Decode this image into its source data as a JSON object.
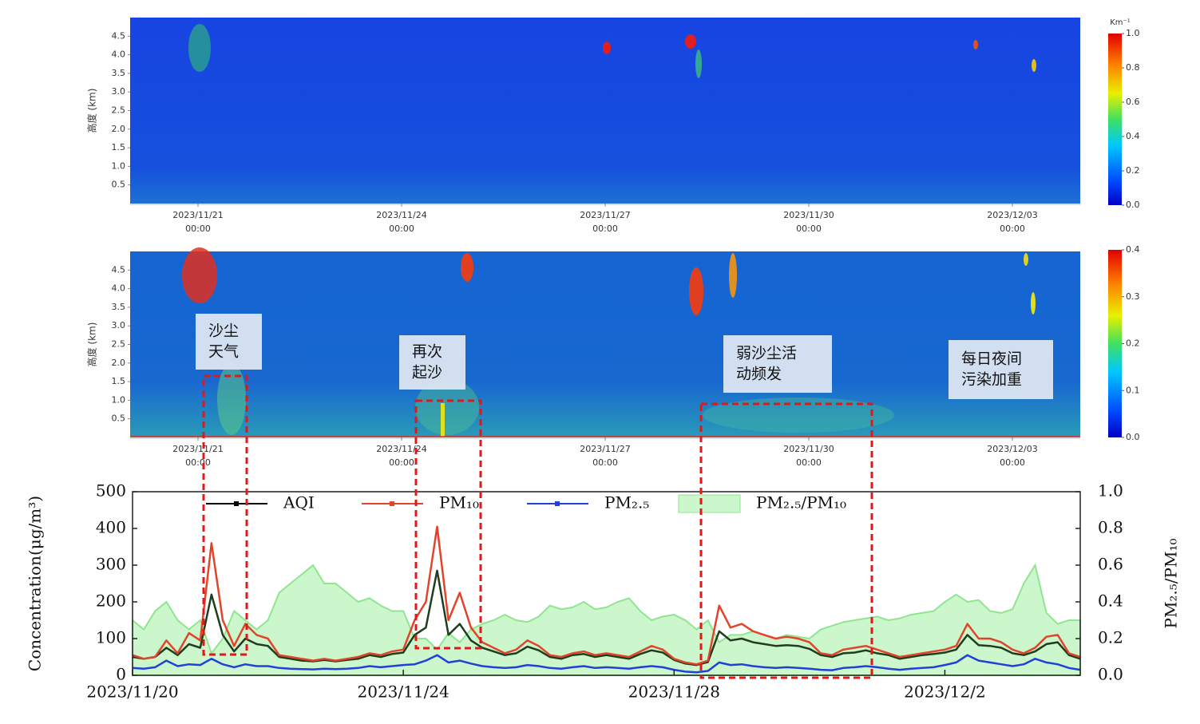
{
  "chart_data": [
    {
      "type": "heatmap",
      "ylabel": "高度 (km)",
      "ylim": [
        0,
        5
      ],
      "yticks": [
        0.5,
        {
          "value": 1,
          "label": "1.0"
        },
        1.5,
        {
          "value": 2,
          "label": "2.0"
        },
        2.5,
        {
          "value": 3,
          "label": "3.0"
        },
        3.5,
        {
          "value": 4,
          "label": "4.0"
        },
        4.5
      ],
      "xlim": [
        "2023/11/20 00:00",
        "2023/12/04 00:00"
      ],
      "xticks": [
        {
          "value": "2023/11/21 00:00",
          "label": "2023/11/21",
          "sublabel": "00:00"
        },
        {
          "value": "2023/11/24 00:00",
          "label": "2023/11/24",
          "sublabel": "00:00"
        },
        {
          "value": "2023/11/27 00:00",
          "label": "2023/11/27",
          "sublabel": "00:00"
        },
        {
          "value": "2023/11/30 00:00",
          "label": "2023/11/30",
          "sublabel": "00:00"
        },
        {
          "value": "2023/12/03 00:00",
          "label": "2023/12/03",
          "sublabel": "00:00"
        }
      ],
      "colorbar": {
        "label": "Km⁻¹",
        "lim": [
          0,
          1
        ],
        "ticks": [
          {
            "value": 0,
            "label": "0.0"
          },
          0.2,
          0.4,
          0.6,
          0.8,
          {
            "value": 1,
            "label": "1.0"
          }
        ]
      }
    },
    {
      "type": "heatmap",
      "ylabel": "高度 (km)",
      "ylim": [
        0,
        5
      ],
      "yticks": [
        0.5,
        {
          "value": 1,
          "label": "1.0"
        },
        1.5,
        {
          "value": 2,
          "label": "2.0"
        },
        2.5,
        {
          "value": 3,
          "label": "3.0"
        },
        3.5,
        {
          "value": 4,
          "label": "4.0"
        },
        4.5
      ],
      "xlim": [
        "2023/11/20 00:00",
        "2023/12/04 00:00"
      ],
      "xticks": [
        {
          "value": "2023/11/21 00:00",
          "label": "2023/11/21",
          "sublabel": "00:00"
        },
        {
          "value": "2023/11/24 00:00",
          "label": "2023/11/24",
          "sublabel": "00:00"
        },
        {
          "value": "2023/11/27 00:00",
          "label": "2023/11/27",
          "sublabel": "00:00"
        },
        {
          "value": "2023/11/30 00:00",
          "label": "2023/11/30",
          "sublabel": "00:00"
        },
        {
          "value": "2023/12/03 00:00",
          "label": "2023/12/03",
          "sublabel": "00:00"
        }
      ],
      "colorbar": {
        "lim": [
          0,
          0.4
        ],
        "ticks": [
          {
            "value": 0,
            "label": "0.0"
          },
          0.1,
          0.2,
          0.3,
          0.4
        ]
      },
      "annotations": [
        {
          "lines": [
            "沙尘",
            "天气"
          ]
        },
        {
          "lines": [
            "再次",
            "起沙"
          ]
        },
        {
          "lines": [
            "弱沙尘活",
            "动频发"
          ]
        },
        {
          "lines": [
            "每日夜间",
            "污染加重"
          ]
        }
      ]
    },
    {
      "type": "line",
      "ylabel": "Concentration(μg/m³)",
      "y2label": "PM₂.₅/PM₁₀",
      "ylim": [
        0,
        500
      ],
      "yticks": [
        0,
        100,
        200,
        300,
        400,
        500
      ],
      "y2lim": [
        0,
        1
      ],
      "y2ticks": [
        {
          "value": 0,
          "label": "0.0"
        },
        0.2,
        0.4,
        0.6,
        0.8,
        {
          "value": 1,
          "label": "1.0"
        }
      ],
      "xlim": [
        "2023/11/20 00:00",
        "2023/12/04 00:00"
      ],
      "xticks": [
        {
          "value": "2023/11/20 00:00",
          "label": "2023/11/20"
        },
        {
          "value": "2023/11/24 00:00",
          "label": "2023/11/24"
        },
        {
          "value": "2023/11/28 00:00",
          "label": "2023/11/28"
        },
        {
          "value": "2023/12/02 00:00",
          "label": "2023/12/2"
        }
      ],
      "x": [
        "2023/11/20 00:00",
        "2023/11/20 04:00",
        "2023/11/20 08:00",
        "2023/11/20 12:00",
        "2023/11/20 16:00",
        "2023/11/20 20:00",
        "2023/11/21 00:00",
        "2023/11/21 04:00",
        "2023/11/21 08:00",
        "2023/11/21 12:00",
        "2023/11/21 16:00",
        "2023/11/21 20:00",
        "2023/11/22 00:00",
        "2023/11/22 04:00",
        "2023/11/22 08:00",
        "2023/11/22 12:00",
        "2023/11/22 16:00",
        "2023/11/22 20:00",
        "2023/11/23 00:00",
        "2023/11/23 04:00",
        "2023/11/23 08:00",
        "2023/11/23 12:00",
        "2023/11/23 16:00",
        "2023/11/23 20:00",
        "2023/11/24 00:00",
        "2023/11/24 04:00",
        "2023/11/24 08:00",
        "2023/11/24 12:00",
        "2023/11/24 16:00",
        "2023/11/24 20:00",
        "2023/11/25 00:00",
        "2023/11/25 04:00",
        "2023/11/25 08:00",
        "2023/11/25 12:00",
        "2023/11/25 16:00",
        "2023/11/25 20:00",
        "2023/11/26 00:00",
        "2023/11/26 04:00",
        "2023/11/26 08:00",
        "2023/11/26 12:00",
        "2023/11/26 16:00",
        "2023/11/26 20:00",
        "2023/11/27 00:00",
        "2023/11/27 04:00",
        "2023/11/27 08:00",
        "2023/11/27 12:00",
        "2023/11/27 16:00",
        "2023/11/27 20:00",
        "2023/11/28 00:00",
        "2023/11/28 04:00",
        "2023/11/28 08:00",
        "2023/11/28 12:00",
        "2023/11/28 16:00",
        "2023/11/28 20:00",
        "2023/11/29 00:00",
        "2023/11/29 04:00",
        "2023/11/29 08:00",
        "2023/11/29 12:00",
        "2023/11/29 16:00",
        "2023/11/29 20:00",
        "2023/11/30 00:00",
        "2023/11/30 04:00",
        "2023/11/30 08:00",
        "2023/11/30 12:00",
        "2023/11/30 16:00",
        "2023/11/30 20:00",
        "2023/12/01 00:00",
        "2023/12/01 04:00",
        "2023/12/01 08:00",
        "2023/12/01 12:00",
        "2023/12/01 16:00",
        "2023/12/01 20:00",
        "2023/12/02 00:00",
        "2023/12/02 04:00",
        "2023/12/02 08:00",
        "2023/12/02 12:00",
        "2023/12/02 16:00",
        "2023/12/02 20:00",
        "2023/12/03 00:00",
        "2023/12/03 04:00",
        "2023/12/03 08:00",
        "2023/12/03 12:00",
        "2023/12/03 16:00",
        "2023/12/03 20:00",
        "2023/12/04 00:00"
      ],
      "series": [
        {
          "name": "PM₂.₅/PM₁₀",
          "type": "area",
          "axis": "y2",
          "color": "#8fe68f",
          "fill": "#ccf6cc",
          "values": [
            0.3,
            0.25,
            0.35,
            0.4,
            0.3,
            0.25,
            0.3,
            0.12,
            0.2,
            0.35,
            0.3,
            0.25,
            0.3,
            0.45,
            0.5,
            0.55,
            0.6,
            0.5,
            0.5,
            0.45,
            0.4,
            0.42,
            0.38,
            0.35,
            0.35,
            0.2,
            0.2,
            0.14,
            0.23,
            0.18,
            0.25,
            0.28,
            0.3,
            0.33,
            0.3,
            0.29,
            0.32,
            0.38,
            0.36,
            0.37,
            0.4,
            0.36,
            0.37,
            0.4,
            0.42,
            0.35,
            0.3,
            0.32,
            0.33,
            0.3,
            0.25,
            0.3,
            0.18,
            0.22,
            0.22,
            0.24,
            0.22,
            0.2,
            0.22,
            0.21,
            0.2,
            0.25,
            0.27,
            0.29,
            0.3,
            0.31,
            0.32,
            0.3,
            0.31,
            0.33,
            0.34,
            0.35,
            0.4,
            0.44,
            0.4,
            0.41,
            0.35,
            0.34,
            0.36,
            0.5,
            0.6,
            0.34,
            0.28,
            0.3,
            0.3
          ]
        },
        {
          "name": "AQI",
          "type": "line",
          "color": "#1f3d1f",
          "legend_color": "#000000",
          "values": [
            50,
            45,
            50,
            75,
            55,
            85,
            75,
            220,
            110,
            65,
            100,
            85,
            80,
            50,
            45,
            40,
            38,
            42,
            38,
            42,
            45,
            55,
            50,
            58,
            62,
            110,
            130,
            285,
            110,
            140,
            95,
            75,
            65,
            55,
            60,
            78,
            68,
            50,
            45,
            55,
            58,
            50,
            55,
            50,
            45,
            58,
            68,
            62,
            42,
            32,
            28,
            36,
            120,
            95,
            100,
            90,
            85,
            80,
            82,
            80,
            72,
            55,
            50,
            60,
            62,
            68,
            60,
            55,
            45,
            50,
            55,
            58,
            62,
            70,
            110,
            82,
            80,
            75,
            60,
            55,
            65,
            85,
            90,
            55,
            45
          ]
        },
        {
          "name": "PM₁₀",
          "type": "line",
          "color": "#e0452b",
          "values": [
            55,
            45,
            50,
            95,
            60,
            115,
            95,
            360,
            150,
            80,
            140,
            110,
            100,
            55,
            50,
            45,
            40,
            45,
            40,
            45,
            50,
            60,
            55,
            65,
            70,
            150,
            200,
            405,
            150,
            225,
            130,
            90,
            75,
            60,
            70,
            95,
            80,
            55,
            50,
            60,
            65,
            55,
            60,
            55,
            50,
            65,
            80,
            70,
            45,
            35,
            30,
            40,
            190,
            130,
            140,
            120,
            110,
            100,
            105,
            100,
            90,
            60,
            55,
            70,
            75,
            80,
            70,
            60,
            50,
            55,
            60,
            65,
            70,
            80,
            140,
            100,
            100,
            90,
            70,
            60,
            75,
            105,
            110,
            60,
            50
          ]
        },
        {
          "name": "PM₂.₅",
          "type": "line",
          "color": "#2040d8",
          "values": [
            20,
            18,
            22,
            40,
            25,
            30,
            28,
            45,
            30,
            22,
            30,
            25,
            25,
            20,
            18,
            17,
            16,
            18,
            17,
            18,
            20,
            25,
            22,
            25,
            28,
            30,
            40,
            55,
            35,
            40,
            32,
            25,
            22,
            20,
            22,
            28,
            25,
            20,
            18,
            22,
            25,
            20,
            22,
            20,
            18,
            22,
            25,
            22,
            15,
            10,
            8,
            12,
            35,
            28,
            30,
            25,
            22,
            20,
            22,
            20,
            18,
            15,
            14,
            20,
            22,
            25,
            22,
            18,
            15,
            18,
            20,
            22,
            28,
            35,
            55,
            40,
            35,
            30,
            25,
            30,
            45,
            35,
            30,
            20,
            15
          ]
        }
      ]
    }
  ]
}
